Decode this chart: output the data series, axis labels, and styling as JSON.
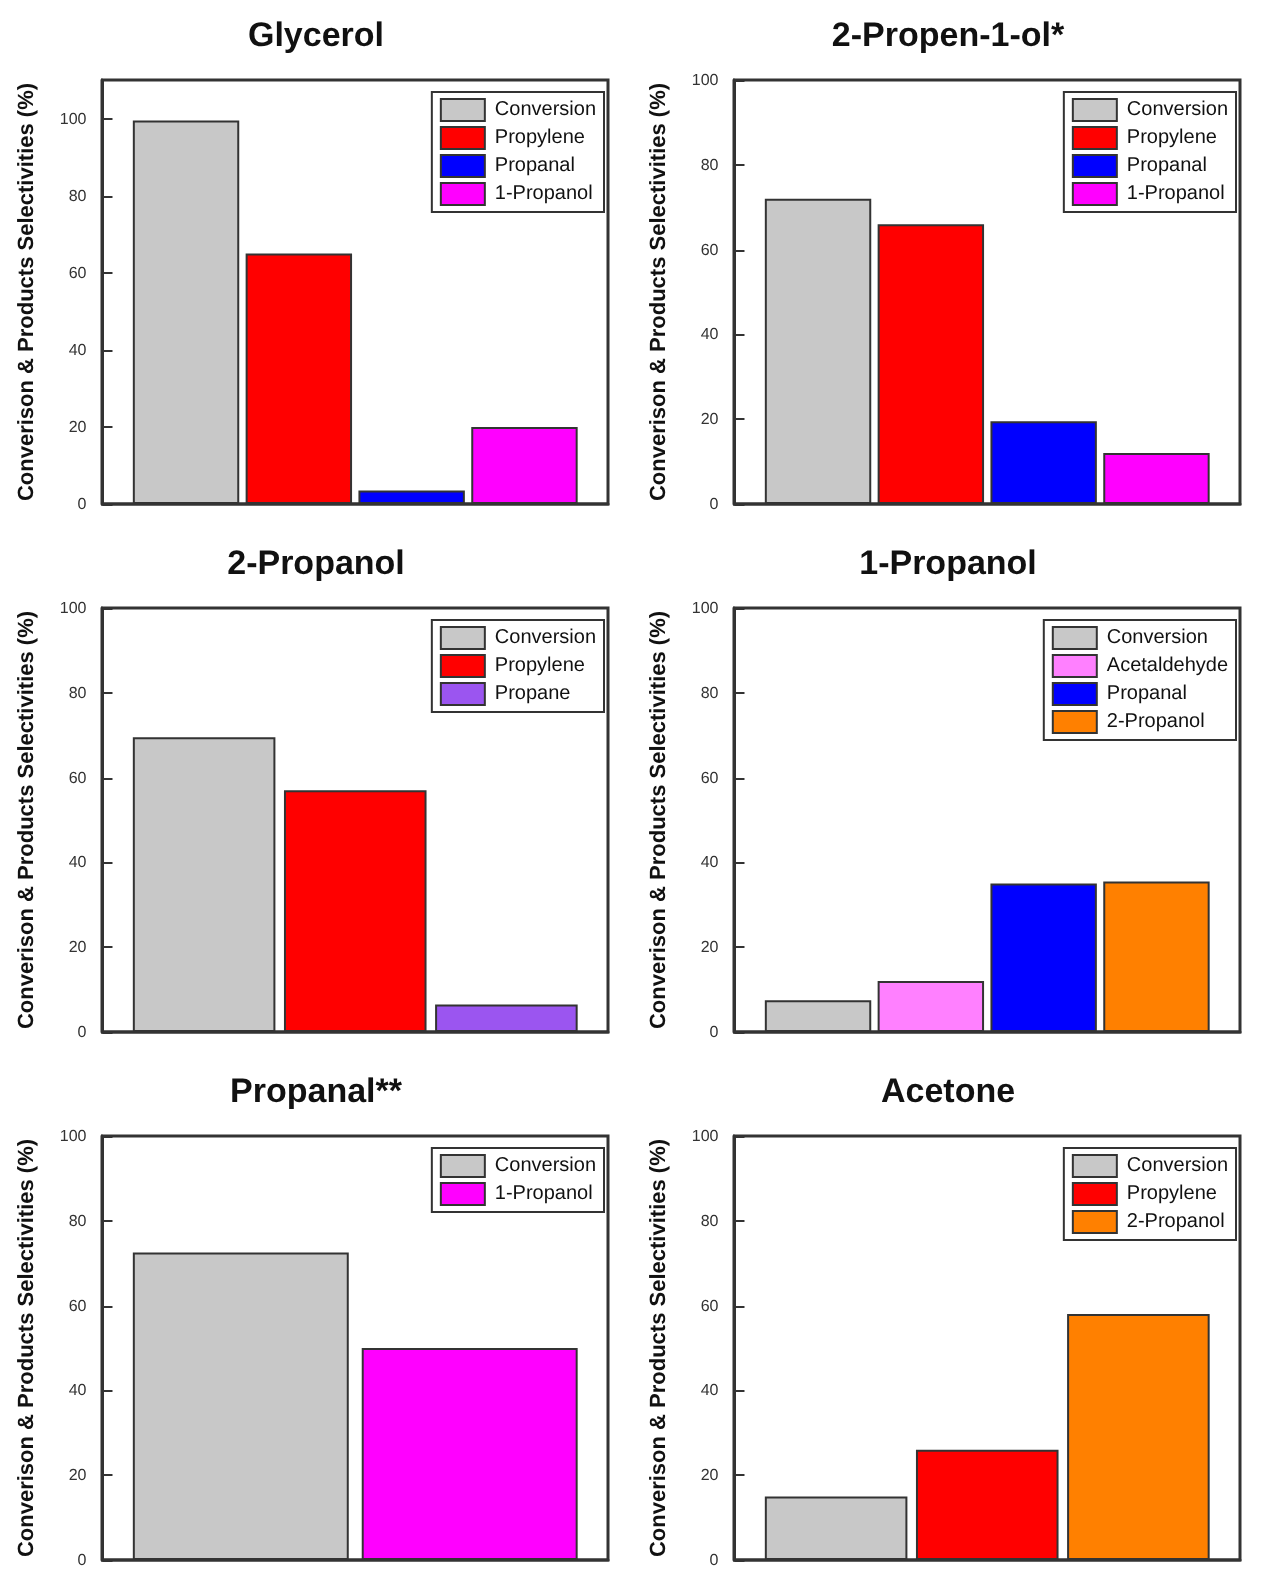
{
  "chart_data": [
    {
      "type": "bar",
      "title": "Glycerol",
      "ylabel": "Converison & Products Selectivities (%)",
      "categories": [
        null
      ],
      "ylim": [
        0,
        110
      ],
      "yticks": [
        0,
        20,
        40,
        60,
        80,
        100
      ],
      "grid": false,
      "legend": "top right",
      "tick_labels": "y",
      "series": [
        {
          "name": "Conversion",
          "color": "#c8c8c8",
          "values": [
            99.5
          ]
        },
        {
          "name": "Propylene",
          "color": "#ff0000",
          "values": [
            65
          ]
        },
        {
          "name": "Propanal",
          "color": "#0000ff",
          "values": [
            3.5
          ]
        },
        {
          "name": "1-Propanol",
          "color": "#ff00ff",
          "values": [
            20
          ]
        }
      ]
    },
    {
      "type": "bar",
      "title": "2-Propen-1-ol*",
      "ylabel": "Converison & Products Selectivities (%)",
      "categories": [
        null
      ],
      "ylim": [
        0,
        100
      ],
      "yticks": [
        0,
        20,
        40,
        60,
        80,
        100
      ],
      "grid": false,
      "legend": "top right",
      "tick_labels": "y",
      "series": [
        {
          "name": "Conversion",
          "color": "#c8c8c8",
          "values": [
            72
          ]
        },
        {
          "name": "Propylene",
          "color": "#ff0000",
          "values": [
            66
          ]
        },
        {
          "name": "Propanal",
          "color": "#0000ff",
          "values": [
            19.5
          ]
        },
        {
          "name": "1-Propanol",
          "color": "#ff00ff",
          "values": [
            12
          ]
        }
      ]
    },
    {
      "type": "bar",
      "title": "2-Propanol",
      "ylabel": "Converison & Products Selectivities (%)",
      "categories": [
        null
      ],
      "ylim": [
        0,
        100
      ],
      "yticks": [
        0,
        20,
        40,
        60,
        80,
        100
      ],
      "grid": false,
      "legend": "top right",
      "tick_labels": "y",
      "series": [
        {
          "name": "Conversion",
          "color": "#c8c8c8",
          "values": [
            69.5
          ]
        },
        {
          "name": "Propylene",
          "color": "#ff0000",
          "values": [
            57
          ]
        },
        {
          "name": "Propane",
          "color": "#9b55f0",
          "values": [
            6.5
          ]
        }
      ]
    },
    {
      "type": "bar",
      "title": "1-Propanol",
      "ylabel": "Converison & Products Selectivities (%)",
      "categories": [
        null
      ],
      "ylim": [
        0,
        100
      ],
      "yticks": [
        0,
        20,
        40,
        60,
        80,
        100
      ],
      "grid": false,
      "legend": "top right",
      "tick_labels": "y",
      "series": [
        {
          "name": "Conversion",
          "color": "#c8c8c8",
          "values": [
            7.5
          ]
        },
        {
          "name": "Acetaldehyde",
          "color": "#ff80ff",
          "values": [
            12
          ]
        },
        {
          "name": "Propanal",
          "color": "#0000ff",
          "values": [
            35
          ]
        },
        {
          "name": "2-Propanol",
          "color": "#ff8000",
          "values": [
            35.5
          ]
        }
      ]
    },
    {
      "type": "bar",
      "title": "Propanal**",
      "ylabel": "Converison & Products Selectivities (%)",
      "categories": [
        null
      ],
      "ylim": [
        0,
        100
      ],
      "yticks": [
        0,
        20,
        40,
        60,
        80,
        100
      ],
      "grid": false,
      "legend": "top right",
      "tick_labels": "y",
      "series": [
        {
          "name": "Conversion",
          "color": "#c8c8c8",
          "values": [
            72.5
          ]
        },
        {
          "name": "1-Propanol",
          "color": "#ff00ff",
          "values": [
            50
          ]
        }
      ]
    },
    {
      "type": "bar",
      "title": "Acetone",
      "ylabel": "Converison & Products Selectivities (%)",
      "categories": [
        null
      ],
      "ylim": [
        0,
        100
      ],
      "yticks": [
        0,
        20,
        40,
        60,
        80,
        100
      ],
      "grid": false,
      "legend": "top right",
      "tick_labels": "y",
      "series": [
        {
          "name": "Conversion",
          "color": "#c8c8c8",
          "values": [
            15
          ]
        },
        {
          "name": "Propylene",
          "color": "#ff0000",
          "values": [
            26
          ]
        },
        {
          "name": "2-Propanol",
          "color": "#ff8000",
          "values": [
            58
          ]
        }
      ]
    }
  ]
}
